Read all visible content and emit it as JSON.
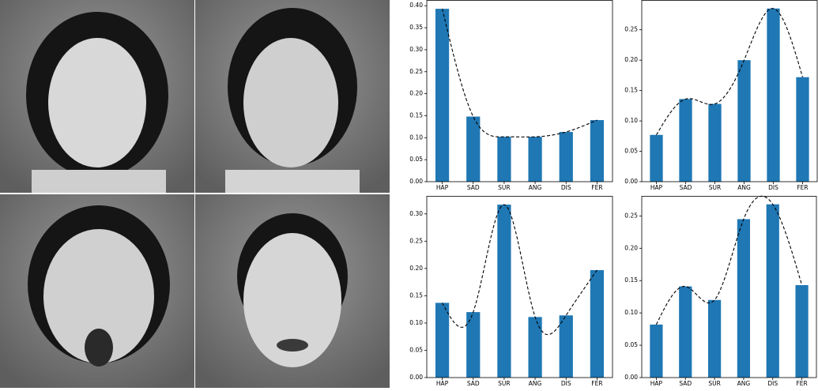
{
  "chart_data": [
    {
      "type": "bar",
      "categories": [
        "HAP",
        "SAD",
        "SUR",
        "ANG",
        "DIS",
        "FER"
      ],
      "values": [
        0.393,
        0.148,
        0.102,
        0.102,
        0.113,
        0.14
      ],
      "color": "#1f77b4",
      "ylim": [
        0,
        0.413
      ],
      "yticks": [
        {
          "value": 0,
          "label": "0.00"
        },
        {
          "value": 0.05,
          "label": "0.05"
        },
        {
          "value": 0.1,
          "label": "0.10"
        },
        {
          "value": 0.15,
          "label": "0.15"
        },
        {
          "value": 0.2,
          "label": "0.20"
        },
        {
          "value": 0.25,
          "label": "0.25"
        },
        {
          "value": 0.3,
          "label": "0.30"
        },
        {
          "value": 0.35,
          "label": "0.35"
        },
        {
          "value": 0.4,
          "label": "0.40"
        }
      ],
      "smooth_curve": true,
      "curve_color": "#000000"
    },
    {
      "type": "bar",
      "categories": [
        "HAP",
        "SAD",
        "SUR",
        "ANG",
        "DIS",
        "FER"
      ],
      "values": [
        0.077,
        0.136,
        0.128,
        0.2,
        0.285,
        0.172
      ],
      "color": "#1f77b4",
      "ylim": [
        0,
        0.299
      ],
      "yticks": [
        {
          "value": 0,
          "label": "0.00"
        },
        {
          "value": 0.05,
          "label": "0.05"
        },
        {
          "value": 0.1,
          "label": "0.10"
        },
        {
          "value": 0.15,
          "label": "0.15"
        },
        {
          "value": 0.2,
          "label": "0.20"
        },
        {
          "value": 0.25,
          "label": "0.25"
        }
      ],
      "smooth_curve": true,
      "curve_color": "#000000"
    },
    {
      "type": "bar",
      "categories": [
        "HAP",
        "SAD",
        "SUR",
        "ANG",
        "DIS",
        "FER"
      ],
      "values": [
        0.137,
        0.12,
        0.317,
        0.111,
        0.114,
        0.197
      ],
      "color": "#1f77b4",
      "ylim": [
        0,
        0.333
      ],
      "yticks": [
        {
          "value": 0,
          "label": "0.00"
        },
        {
          "value": 0.05,
          "label": "0.05"
        },
        {
          "value": 0.1,
          "label": "0.10"
        },
        {
          "value": 0.15,
          "label": "0.15"
        },
        {
          "value": 0.2,
          "label": "0.20"
        },
        {
          "value": 0.25,
          "label": "0.25"
        },
        {
          "value": 0.3,
          "label": "0.30"
        }
      ],
      "smooth_curve": true,
      "curve_color": "#000000"
    },
    {
      "type": "bar",
      "categories": [
        "HAP",
        "SAD",
        "SUR",
        "ANG",
        "DIS",
        "FER"
      ],
      "values": [
        0.082,
        0.141,
        0.12,
        0.245,
        0.268,
        0.143
      ],
      "color": "#1f77b4",
      "ylim": [
        0,
        0.281
      ],
      "yticks": [
        {
          "value": 0,
          "label": "0.00"
        },
        {
          "value": 0.05,
          "label": "0.05"
        },
        {
          "value": 0.1,
          "label": "0.10"
        },
        {
          "value": 0.15,
          "label": "0.15"
        },
        {
          "value": 0.2,
          "label": "0.20"
        },
        {
          "value": 0.25,
          "label": "0.25"
        }
      ],
      "smooth_curve": true,
      "curve_color": "#000000"
    }
  ]
}
